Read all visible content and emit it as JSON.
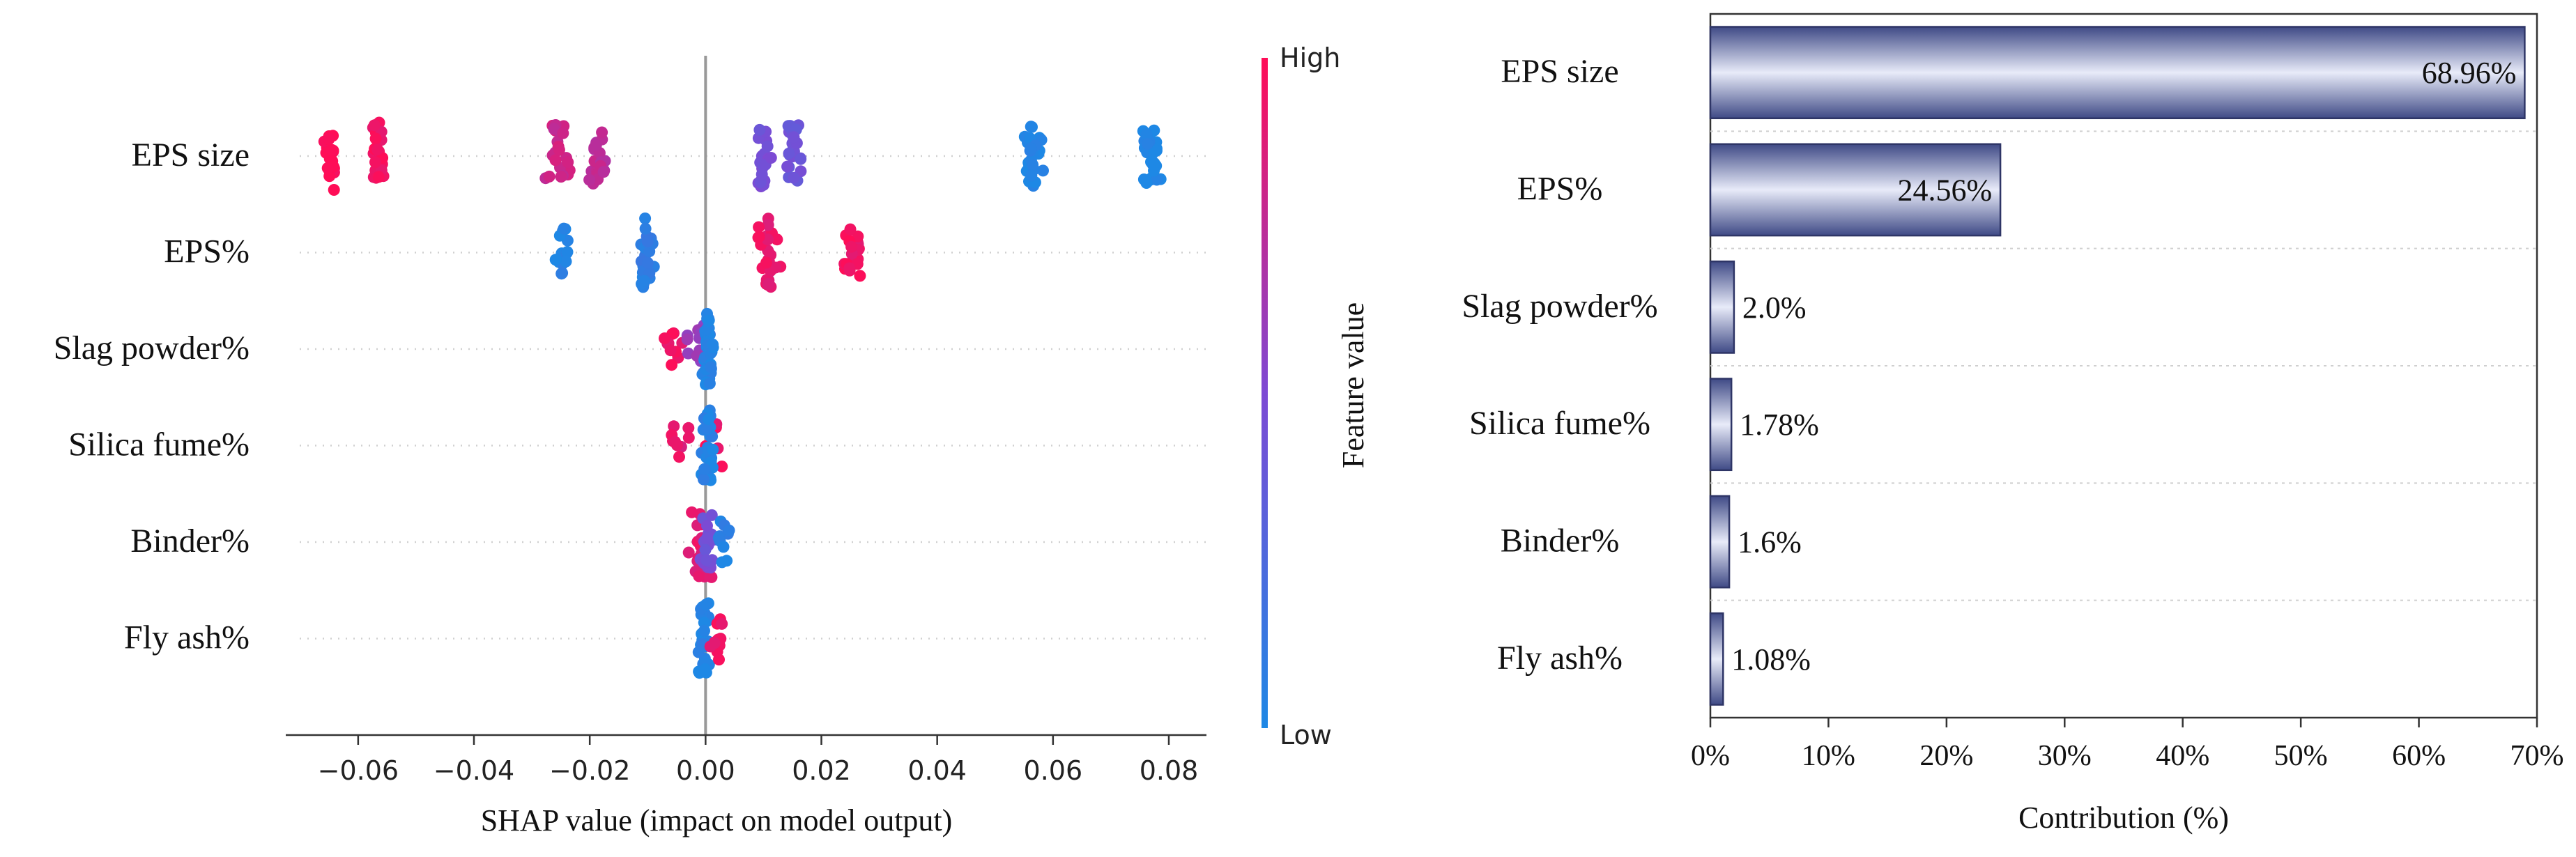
{
  "chart_data": [
    {
      "type": "scatter",
      "subtype": "shap-beeswarm",
      "xlabel": "SHAP value (impact on model output)",
      "xlim": [
        -0.0725,
        0.0865
      ],
      "xticks": [
        -0.06,
        -0.04,
        -0.02,
        0.0,
        0.02,
        0.04,
        0.06,
        0.08
      ],
      "xtick_labels": [
        "−0.06",
        "−0.04",
        "−0.02",
        "0.00",
        "0.02",
        "0.04",
        "0.06",
        "0.08"
      ],
      "features": [
        "EPS size",
        "EPS%",
        "Slag powder%",
        "Silica fume%",
        "Binder%",
        "Fly ash%"
      ],
      "clusters": [
        [
          {
            "x": -0.0648,
            "xs": 0.0008,
            "n": 24,
            "v": 1.0,
            "h": 0.9
          },
          {
            "x": -0.0567,
            "xs": 0.0008,
            "n": 26,
            "v": 0.95,
            "h": 0.95
          },
          {
            "x": -0.0254,
            "xs": 0.0012,
            "n": 24,
            "v": 0.8,
            "h": 0.8
          },
          {
            "x": -0.0185,
            "xs": 0.001,
            "n": 20,
            "v": 0.75,
            "h": 0.7
          },
          {
            "x": 0.0098,
            "xs": 0.0008,
            "n": 22,
            "v": 0.45,
            "h": 0.75
          },
          {
            "x": 0.0155,
            "xs": 0.0011,
            "n": 24,
            "v": 0.42,
            "h": 0.75
          },
          {
            "x": 0.0563,
            "xs": 0.001,
            "n": 28,
            "v": 0.02,
            "h": 0.7
          },
          {
            "x": 0.077,
            "xs": 0.001,
            "n": 28,
            "v": 0.0,
            "h": 0.65
          }
        ],
        [
          {
            "x": -0.0245,
            "xs": 0.001,
            "n": 14,
            "v": 0.05,
            "h": 0.5
          },
          {
            "x": -0.0103,
            "xs": 0.0007,
            "n": 26,
            "v": 0.08,
            "h": 0.95
          },
          {
            "x": 0.011,
            "xs": 0.0009,
            "n": 28,
            "v": 0.92,
            "h": 0.95
          },
          {
            "x": 0.0255,
            "xs": 0.0012,
            "n": 20,
            "v": 0.95,
            "h": 0.45
          }
        ],
        [
          {
            "x": -0.006,
            "xs": 0.002,
            "n": 10,
            "v": 0.95,
            "h": 0.25
          },
          {
            "x": -0.0015,
            "xs": 0.0013,
            "n": 16,
            "v": 0.6,
            "h": 0.45
          },
          {
            "x": 0.0005,
            "xs": 0.0006,
            "n": 34,
            "v": 0.02,
            "h": 1.0
          }
        ],
        [
          {
            "x": -0.0045,
            "xs": 0.0012,
            "n": 9,
            "v": 0.9,
            "h": 0.3
          },
          {
            "x": 0.0015,
            "xs": 0.0009,
            "n": 8,
            "v": 0.95,
            "h": 0.3
          },
          {
            "x": 0.0003,
            "xs": 0.0006,
            "n": 34,
            "v": 0.03,
            "h": 1.0
          }
        ],
        [
          {
            "x": -0.001,
            "xs": 0.0012,
            "n": 28,
            "v": 0.9,
            "h": 1.0
          },
          {
            "x": 0.0002,
            "xs": 0.001,
            "n": 18,
            "v": 0.45,
            "h": 0.6
          },
          {
            "x": 0.003,
            "xs": 0.001,
            "n": 10,
            "v": 0.05,
            "h": 0.3
          }
        ],
        [
          {
            "x": -0.0003,
            "xs": 0.0007,
            "n": 30,
            "v": 0.03,
            "h": 1.0
          },
          {
            "x": 0.002,
            "xs": 0.0008,
            "n": 12,
            "v": 0.95,
            "h": 0.4
          }
        ]
      ],
      "colorbar": {
        "label": "Feature value",
        "high_label": "High",
        "low_label": "Low",
        "color_high": "#ff0d57",
        "color_mid": "#7d4ad4",
        "color_low": "#1e88e5"
      }
    },
    {
      "type": "bar",
      "orientation": "horizontal",
      "categories": [
        "EPS size",
        "EPS%",
        "Slag powder%",
        "Silica fume%",
        "Binder%",
        "Fly ash%"
      ],
      "values": [
        68.96,
        24.56,
        2.0,
        1.78,
        1.6,
        1.08
      ],
      "value_labels": [
        "68.96%",
        "24.56%",
        "2.0%",
        "1.78%",
        "1.6%",
        "1.08%"
      ],
      "xlabel": "Contribution (%)",
      "xlim": [
        0,
        70
      ],
      "xticks": [
        0,
        10,
        20,
        30,
        40,
        50,
        60,
        70
      ],
      "xtick_labels": [
        "0%",
        "10%",
        "20%",
        "30%",
        "40%",
        "50%",
        "60%",
        "70%"
      ],
      "bar_color_light": "#e8ebf9",
      "bar_color_dark": "#3f4a86",
      "grid": "horizontal-dotted"
    }
  ]
}
